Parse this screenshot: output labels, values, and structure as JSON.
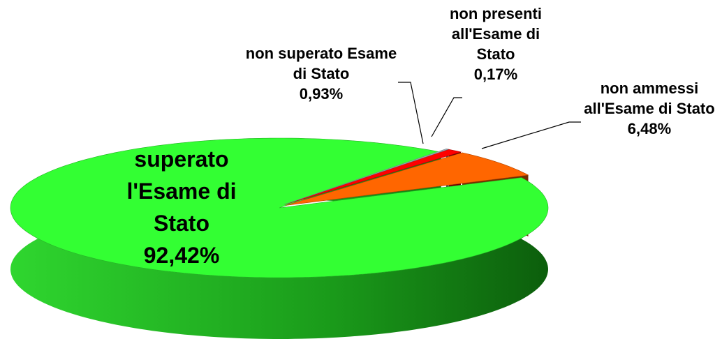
{
  "chart_data": {
    "type": "pie",
    "categories": [
      "superato l'Esame di Stato",
      "non ammessi all'Esame di Stato",
      "non superato Esame di Stato",
      "non presenti all'Esame di Stato"
    ],
    "values": [
      92.42,
      6.48,
      0.93,
      0.17
    ],
    "value_labels": [
      "92,42%",
      "6,48%",
      "0,93%",
      "0,17%"
    ],
    "colors": [
      "#33ff33",
      "#ff6600",
      "#ff0000",
      "#a6b4c0"
    ]
  }
}
